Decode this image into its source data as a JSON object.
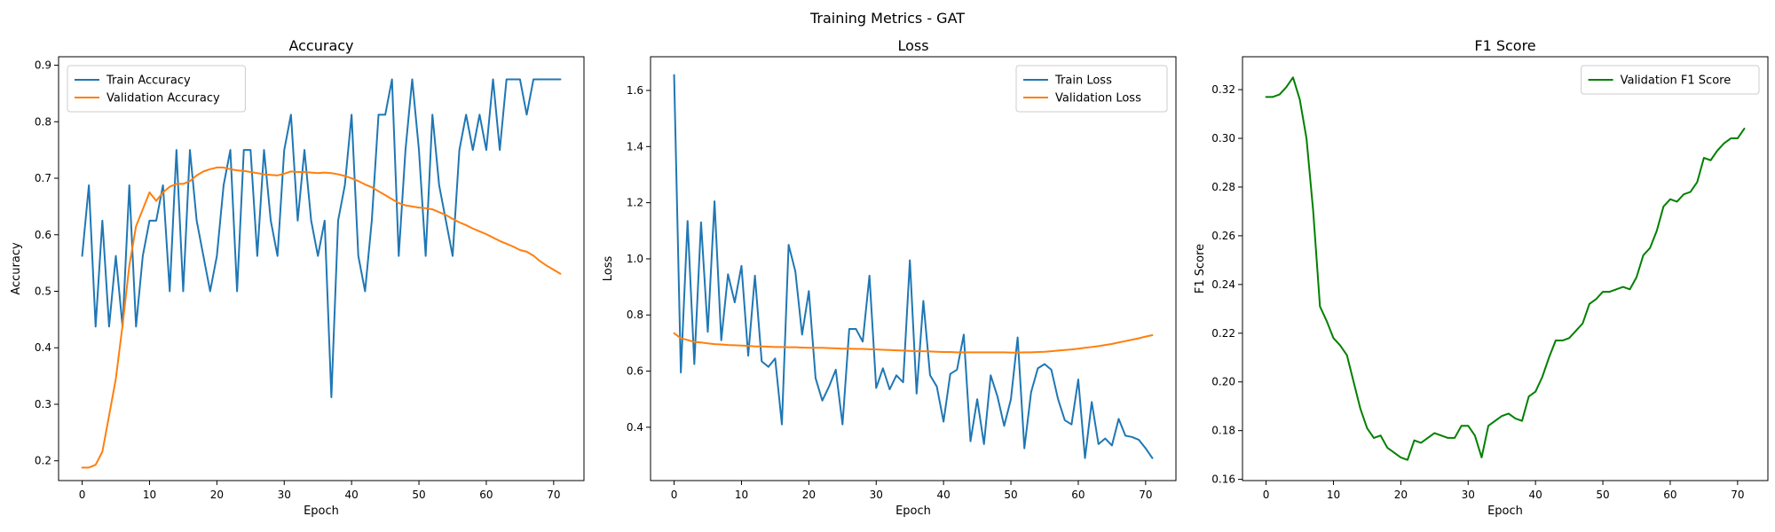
{
  "figure": {
    "suptitle": "Training Metrics - GAT"
  },
  "chart_data": [
    {
      "type": "line",
      "title": "Accuracy",
      "xlabel": "Epoch",
      "ylabel": "Accuracy",
      "xlim": [
        -3.5,
        74.5
      ],
      "ylim": [
        0.165,
        0.915
      ],
      "xticks": [
        0,
        10,
        20,
        30,
        40,
        50,
        60,
        70
      ],
      "yticks": [
        0.2,
        0.3,
        0.4,
        0.5,
        0.6,
        0.7,
        0.8,
        0.9
      ],
      "ytick_decimals": 1,
      "legend": "upper-left",
      "series": [
        {
          "name": "Train Accuracy",
          "color": "#1f77b4",
          "values": [
            0.5625,
            0.6875,
            0.4375,
            0.625,
            0.4375,
            0.5625,
            0.4375,
            0.6875,
            0.4375,
            0.5625,
            0.625,
            0.625,
            0.6875,
            0.5,
            0.75,
            0.5,
            0.75,
            0.625,
            0.5625,
            0.5,
            0.5625,
            0.6875,
            0.75,
            0.5,
            0.75,
            0.75,
            0.5625,
            0.75,
            0.625,
            0.5625,
            0.75,
            0.8125,
            0.625,
            0.75,
            0.625,
            0.5625,
            0.625,
            0.3125,
            0.625,
            0.6875,
            0.8125,
            0.5625,
            0.5,
            0.625,
            0.8125,
            0.8125,
            0.875,
            0.5625,
            0.75,
            0.875,
            0.75,
            0.5625,
            0.8125,
            0.6875,
            0.625,
            0.5625,
            0.75,
            0.8125,
            0.75,
            0.8125,
            0.75,
            0.875,
            0.75,
            0.875,
            0.875,
            0.875,
            0.8125,
            0.875,
            0.875,
            0.875,
            0.875,
            0.875
          ]
        },
        {
          "name": "Validation Accuracy",
          "color": "#ff7f0e",
          "values": [
            0.188,
            0.188,
            0.193,
            0.216,
            0.28,
            0.345,
            0.44,
            0.545,
            0.615,
            0.645,
            0.675,
            0.66,
            0.675,
            0.685,
            0.69,
            0.69,
            0.695,
            0.705,
            0.712,
            0.716,
            0.719,
            0.719,
            0.716,
            0.714,
            0.713,
            0.711,
            0.709,
            0.707,
            0.706,
            0.705,
            0.708,
            0.712,
            0.711,
            0.711,
            0.71,
            0.709,
            0.71,
            0.709,
            0.707,
            0.704,
            0.7,
            0.695,
            0.689,
            0.684,
            0.677,
            0.67,
            0.663,
            0.656,
            0.652,
            0.65,
            0.648,
            0.647,
            0.645,
            0.64,
            0.635,
            0.628,
            0.622,
            0.617,
            0.611,
            0.606,
            0.601,
            0.595,
            0.589,
            0.584,
            0.579,
            0.573,
            0.57,
            0.563,
            0.553,
            0.545,
            0.538,
            0.531
          ]
        }
      ]
    },
    {
      "type": "line",
      "title": "Loss",
      "xlabel": "Epoch",
      "ylabel": "Loss",
      "xlim": [
        -3.5,
        74.5
      ],
      "ylim": [
        0.21,
        1.72
      ],
      "xticks": [
        0,
        10,
        20,
        30,
        40,
        50,
        60,
        70
      ],
      "yticks": [
        0.4,
        0.6,
        0.8,
        1.0,
        1.2,
        1.4,
        1.6
      ],
      "ytick_decimals": 1,
      "legend": "upper-right",
      "series": [
        {
          "name": "Train Loss",
          "color": "#1f77b4",
          "values": [
            1.655,
            0.595,
            1.135,
            0.625,
            1.13,
            0.74,
            1.205,
            0.71,
            0.945,
            0.845,
            0.975,
            0.655,
            0.94,
            0.635,
            0.615,
            0.645,
            0.41,
            1.05,
            0.955,
            0.73,
            0.885,
            0.575,
            0.495,
            0.545,
            0.605,
            0.41,
            0.75,
            0.75,
            0.705,
            0.94,
            0.54,
            0.61,
            0.535,
            0.585,
            0.56,
            0.995,
            0.52,
            0.85,
            0.585,
            0.545,
            0.42,
            0.59,
            0.605,
            0.73,
            0.35,
            0.5,
            0.34,
            0.585,
            0.51,
            0.405,
            0.5,
            0.72,
            0.325,
            0.525,
            0.61,
            0.625,
            0.605,
            0.5,
            0.425,
            0.41,
            0.57,
            0.29,
            0.49,
            0.34,
            0.36,
            0.335,
            0.43,
            0.37,
            0.365,
            0.355,
            0.325,
            0.29
          ]
        },
        {
          "name": "Validation Loss",
          "color": "#ff7f0e",
          "values": [
            0.735,
            0.717,
            0.711,
            0.704,
            0.702,
            0.699,
            0.696,
            0.695,
            0.693,
            0.692,
            0.691,
            0.69,
            0.688,
            0.688,
            0.687,
            0.686,
            0.686,
            0.685,
            0.685,
            0.684,
            0.683,
            0.683,
            0.683,
            0.682,
            0.681,
            0.68,
            0.68,
            0.679,
            0.679,
            0.678,
            0.677,
            0.676,
            0.675,
            0.674,
            0.673,
            0.672,
            0.671,
            0.671,
            0.67,
            0.669,
            0.668,
            0.668,
            0.667,
            0.667,
            0.667,
            0.667,
            0.667,
            0.667,
            0.667,
            0.667,
            0.666,
            0.666,
            0.667,
            0.667,
            0.668,
            0.669,
            0.671,
            0.673,
            0.675,
            0.677,
            0.68,
            0.683,
            0.686,
            0.689,
            0.693,
            0.697,
            0.702,
            0.707,
            0.712,
            0.717,
            0.723,
            0.728
          ]
        }
      ]
    },
    {
      "type": "line",
      "title": "F1 Score",
      "xlabel": "Epoch",
      "ylabel": "F1 Score",
      "xlim": [
        -3.5,
        74.5
      ],
      "ylim": [
        0.1595,
        0.3335
      ],
      "xticks": [
        0,
        10,
        20,
        30,
        40,
        50,
        60,
        70
      ],
      "yticks": [
        0.16,
        0.18,
        0.2,
        0.22,
        0.24,
        0.26,
        0.28,
        0.3,
        0.32
      ],
      "ytick_decimals": 2,
      "legend": "upper-right",
      "series": [
        {
          "name": "Validation F1 Score",
          "color": "#008000",
          "values": [
            0.317,
            0.317,
            0.318,
            0.321,
            0.325,
            0.316,
            0.3,
            0.27,
            0.231,
            0.225,
            0.218,
            0.215,
            0.211,
            0.2,
            0.189,
            0.181,
            0.177,
            0.178,
            0.173,
            0.171,
            0.169,
            0.168,
            0.176,
            0.175,
            0.177,
            0.179,
            0.178,
            0.177,
            0.177,
            0.182,
            0.182,
            0.178,
            0.169,
            0.182,
            0.184,
            0.186,
            0.187,
            0.185,
            0.184,
            0.194,
            0.196,
            0.202,
            0.21,
            0.217,
            0.217,
            0.218,
            0.221,
            0.224,
            0.232,
            0.234,
            0.237,
            0.237,
            0.238,
            0.239,
            0.238,
            0.243,
            0.252,
            0.255,
            0.262,
            0.272,
            0.275,
            0.274,
            0.277,
            0.278,
            0.282,
            0.292,
            0.291,
            0.295,
            0.298,
            0.3,
            0.3,
            0.304
          ]
        }
      ]
    }
  ]
}
